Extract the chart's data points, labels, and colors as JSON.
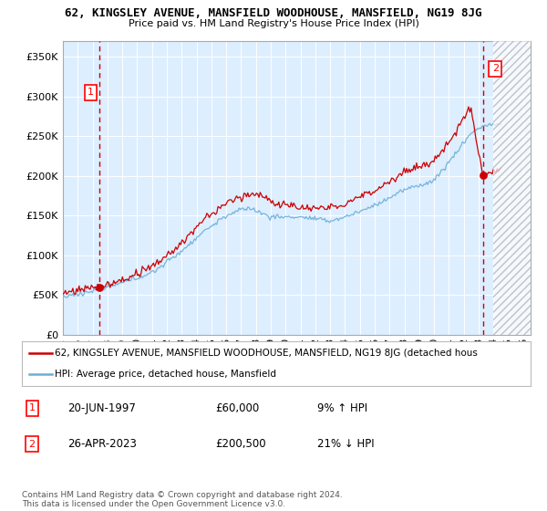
{
  "title1": "62, KINGSLEY AVENUE, MANSFIELD WOODHOUSE, MANSFIELD, NG19 8JG",
  "title2": "Price paid vs. HM Land Registry's House Price Index (HPI)",
  "ylabel_ticks": [
    "£0",
    "£50K",
    "£100K",
    "£150K",
    "£200K",
    "£250K",
    "£300K",
    "£350K"
  ],
  "ylabel_values": [
    0,
    50000,
    100000,
    150000,
    200000,
    250000,
    300000,
    350000
  ],
  "ylim": [
    0,
    370000
  ],
  "xlim_start": 1995.3,
  "xlim_end": 2026.5,
  "sale1_x": 1997.47,
  "sale1_y": 60000,
  "sale1_label": "1",
  "sale2_x": 2023.32,
  "sale2_y": 200500,
  "sale2_label": "2",
  "hpi_color": "#6baed6",
  "price_color": "#cc0000",
  "dashed_vline_color": "#cc0000",
  "chart_bg_color": "#ddeeff",
  "background_color": "#ffffff",
  "grid_color": "#ffffff",
  "legend_line1": "62, KINGSLEY AVENUE, MANSFIELD WOODHOUSE, MANSFIELD, NG19 8JG (detached hous",
  "legend_line2": "HPI: Average price, detached house, Mansfield",
  "ann1_date": "20-JUN-1997",
  "ann1_price": "£60,000",
  "ann1_hpi": "9% ↑ HPI",
  "ann2_date": "26-APR-2023",
  "ann2_price": "£200,500",
  "ann2_hpi": "21% ↓ HPI",
  "footnote": "Contains HM Land Registry data © Crown copyright and database right 2024.\nThis data is licensed under the Open Government Licence v3.0.",
  "xtick_years": [
    1995,
    1996,
    1997,
    1998,
    1999,
    2000,
    2001,
    2002,
    2003,
    2004,
    2005,
    2006,
    2007,
    2008,
    2009,
    2010,
    2011,
    2012,
    2013,
    2014,
    2015,
    2016,
    2017,
    2018,
    2019,
    2020,
    2021,
    2022,
    2023,
    2024,
    2025,
    2026
  ],
  "hatch_start": 2024.0,
  "sale2_peak_x": 2022.5,
  "sale2_peak_y": 285000
}
